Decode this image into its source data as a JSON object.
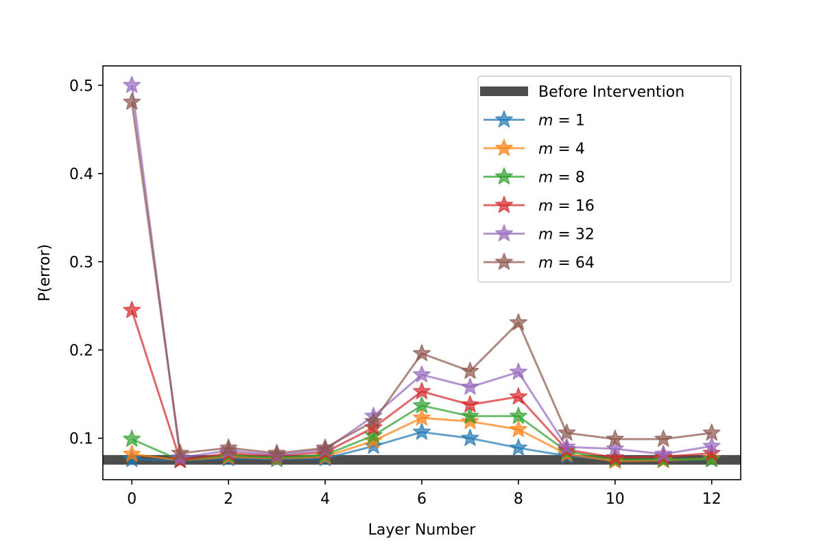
{
  "chart_data": {
    "type": "line",
    "title": "",
    "xlabel": "Layer Number",
    "ylabel": "P(error)",
    "x": [
      0,
      1,
      2,
      3,
      4,
      5,
      6,
      7,
      8,
      9,
      10,
      11,
      12
    ],
    "xlim": [
      -0.6,
      12.6
    ],
    "ylim": [
      0.053,
      0.522
    ],
    "xticks": [
      0,
      2,
      4,
      6,
      8,
      10,
      12
    ],
    "xtick_labels": [
      "0",
      "2",
      "4",
      "6",
      "8",
      "10",
      "12"
    ],
    "yticks": [
      0.1,
      0.2,
      0.3,
      0.4,
      0.5
    ],
    "ytick_labels": [
      "0.1",
      "0.2",
      "0.3",
      "0.4",
      "0.5"
    ],
    "grid": false,
    "legend_position": "top-right",
    "baseline": {
      "name": "Before Intervention",
      "value": 0.0755,
      "color": "#4d4d4d"
    },
    "series": [
      {
        "name": "m = 1",
        "var": "m",
        "val": "1",
        "color": "#1f77b4",
        "values": [
          0.076,
          0.075,
          0.077,
          0.076,
          0.077,
          0.091,
          0.107,
          0.1,
          0.089,
          0.08,
          0.075,
          0.075,
          0.076
        ]
      },
      {
        "name": "m = 4",
        "var": "m",
        "val": "4",
        "color": "#ff7f0e",
        "values": [
          0.082,
          0.075,
          0.079,
          0.077,
          0.079,
          0.097,
          0.123,
          0.119,
          0.11,
          0.082,
          0.074,
          0.075,
          0.077
        ]
      },
      {
        "name": "m = 8",
        "var": "m",
        "val": "8",
        "color": "#2ca02c",
        "values": [
          0.099,
          0.075,
          0.081,
          0.078,
          0.081,
          0.103,
          0.137,
          0.125,
          0.125,
          0.085,
          0.076,
          0.076,
          0.076
        ]
      },
      {
        "name": "m = 16",
        "var": "m",
        "val": "16",
        "color": "#d62728",
        "values": [
          0.245,
          0.075,
          0.083,
          0.08,
          0.084,
          0.112,
          0.153,
          0.138,
          0.147,
          0.087,
          0.078,
          0.079,
          0.083
        ]
      },
      {
        "name": "m = 32",
        "var": "m",
        "val": "32",
        "color": "#9467bd",
        "values": [
          0.5,
          0.078,
          0.086,
          0.081,
          0.087,
          0.125,
          0.172,
          0.158,
          0.175,
          0.09,
          0.088,
          0.082,
          0.091
        ]
      },
      {
        "name": "m = 64",
        "var": "m",
        "val": "64",
        "color": "#8c564b",
        "values": [
          0.481,
          0.083,
          0.089,
          0.083,
          0.089,
          0.119,
          0.196,
          0.176,
          0.231,
          0.106,
          0.099,
          0.099,
          0.106
        ]
      }
    ]
  }
}
